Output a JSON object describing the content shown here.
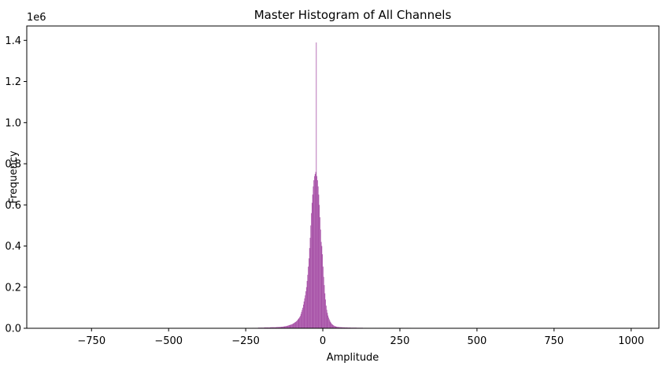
{
  "chart_data": {
    "type": "bar",
    "title": "Master Histogram of All Channels",
    "xlabel": "Amplitude",
    "ylabel": "Frequency",
    "y_offset_text": "1e6",
    "xlim": [
      -960,
      1090
    ],
    "ylim": [
      0,
      1470000
    ],
    "x_ticks": [
      -750,
      -500,
      -250,
      0,
      250,
      500,
      750,
      1000
    ],
    "x_tick_labels": [
      "−750",
      "−500",
      "−250",
      "0",
      "250",
      "500",
      "750",
      "1000"
    ],
    "y_ticks": [
      0,
      200000,
      400000,
      600000,
      800000,
      1000000,
      1200000,
      1400000
    ],
    "y_tick_labels": [
      "0.0",
      "0.2",
      "0.4",
      "0.6",
      "0.8",
      "1.0",
      "1.2",
      "1.4"
    ],
    "grid": false,
    "bar_color": "#9b3a9b",
    "bar_opacity": 0.9,
    "series": [
      {
        "bin_edges_start": -230,
        "bin_width": 2,
        "values": [
          2000,
          2000,
          2000,
          2000,
          2000,
          2000,
          2000,
          2000,
          2000,
          2000,
          3000,
          3000,
          3000,
          3000,
          3000,
          3000,
          3000,
          3000,
          3000,
          3000,
          4000,
          4000,
          4000,
          4000,
          4000,
          4000,
          4000,
          4000,
          4000,
          4000,
          5000,
          5000,
          5000,
          5000,
          5000,
          5000,
          5000,
          5000,
          5000,
          5000,
          6000,
          6000,
          6000,
          6000,
          6000,
          6500,
          6500,
          7000,
          7000,
          7500,
          8000,
          8500,
          9000,
          9500,
          10000,
          10500,
          11000,
          12000,
          13000,
          14000,
          15000,
          16000,
          17000,
          18000,
          19000,
          20000,
          22000,
          24000,
          26000,
          28000,
          30000,
          32000,
          35000,
          38000,
          42000,
          46000,
          50000,
          55000,
          60000,
          70000,
          80000,
          90000,
          100000,
          115000,
          130000,
          145000,
          160000,
          180000,
          200000,
          230000,
          260000,
          300000,
          340000,
          390000,
          440000,
          500000,
          560000,
          610000,
          650000,
          690000,
          720000,
          740000,
          750000,
          760000,
          1390000,
          740000,
          720000,
          690000,
          650000,
          600000,
          540000,
          480000,
          420000,
          400000,
          360000,
          300000,
          250000,
          210000,
          170000,
          140000,
          110000,
          90000,
          75000,
          62000,
          52000,
          44000,
          37000,
          31000,
          26000,
          22000,
          19000,
          16000,
          14000,
          12000,
          10500,
          9500,
          8500,
          7500,
          7000,
          6500,
          6000,
          6000,
          5500,
          5500,
          5000,
          5000,
          5000,
          4500,
          4500,
          4500,
          4000,
          4000,
          4000,
          4000,
          4000,
          3500,
          3500,
          3500,
          3500,
          3500,
          3000,
          3000,
          3000,
          3000,
          3000,
          3000,
          3000,
          3000,
          3000,
          3000,
          2500,
          2500,
          2500,
          2500,
          2500,
          2500,
          2500,
          2500,
          2500,
          2500,
          2000,
          2000,
          2000,
          2000,
          2000,
          2000,
          2000,
          2000,
          2000,
          2000,
          2000,
          2000,
          2000,
          2000,
          2000,
          2000,
          2000,
          2000,
          2000,
          2000,
          2000,
          2000,
          2000,
          2000,
          2000,
          2000,
          2000,
          2000,
          2000,
          2000,
          2000,
          2000,
          2000,
          2000,
          2000,
          2000,
          2000,
          2000,
          2000,
          2000,
          2000,
          2000,
          2000,
          2000,
          2000,
          2000,
          2000,
          2000,
          2000,
          2000,
          2000,
          2000,
          2000,
          2000,
          2000,
          2000,
          2000,
          2000,
          2000,
          2000,
          2000,
          2000,
          2000,
          2000,
          2000,
          2000,
          2000,
          2000,
          2000,
          2000,
          2000,
          2000,
          2000,
          2000,
          2000,
          2000,
          2000,
          2000
        ]
      }
    ]
  }
}
